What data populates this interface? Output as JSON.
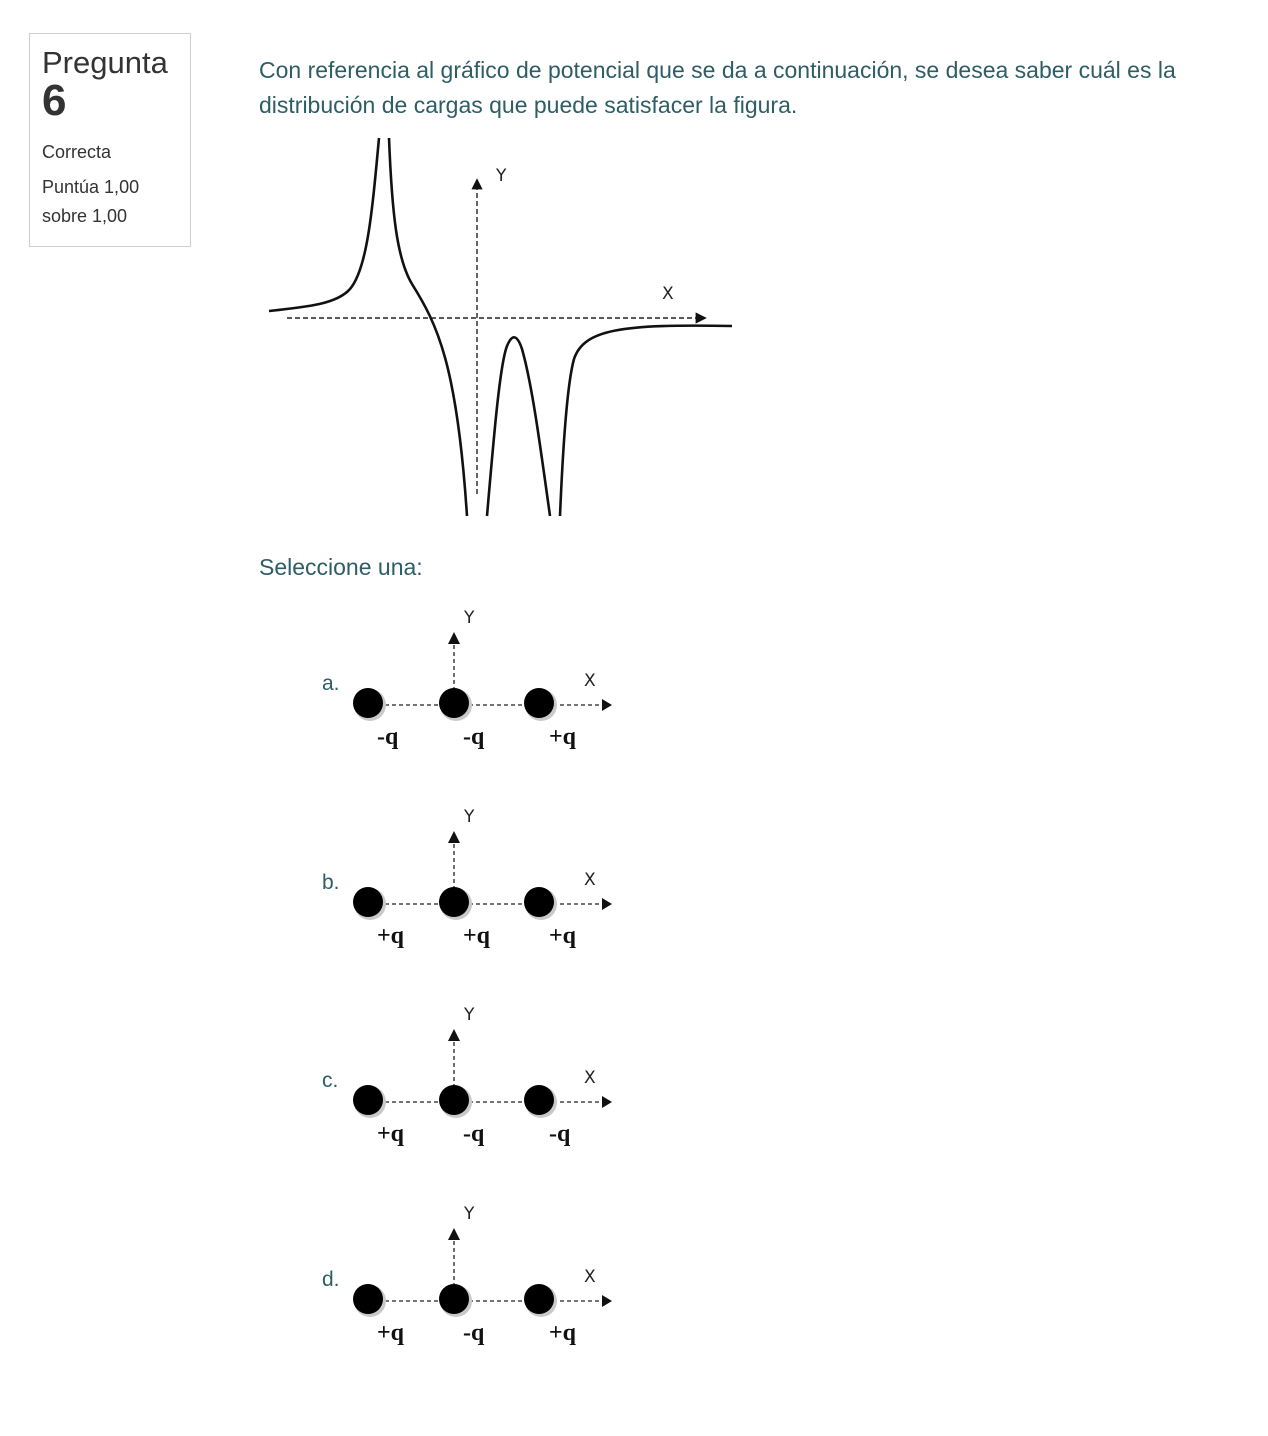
{
  "question": {
    "label": "Pregunta",
    "number": "6",
    "status": "Correcta",
    "grade_line1": "Puntúa 1,00",
    "grade_line2": "sobre 1,00",
    "text": "Con referencia al gráfico de potencial que se da a continuación, se desea saber cuál es la distribución de cargas que puede satisfacer la figura."
  },
  "graph": {
    "x_axis_label": "X",
    "y_axis_label": "Y"
  },
  "prompt": "Seleccione una:",
  "options": [
    {
      "letter": "a.",
      "charges": [
        "-q",
        "-q",
        "+q"
      ]
    },
    {
      "letter": "b.",
      "charges": [
        "+q",
        "+q",
        "+q"
      ]
    },
    {
      "letter": "c.",
      "charges": [
        "+q",
        "-q",
        "-q"
      ]
    },
    {
      "letter": "d.",
      "charges": [
        "+q",
        "-q",
        "+q"
      ]
    }
  ],
  "colors": {
    "text_accent": "#2e5d66",
    "box_border": "#cfcfcf"
  }
}
